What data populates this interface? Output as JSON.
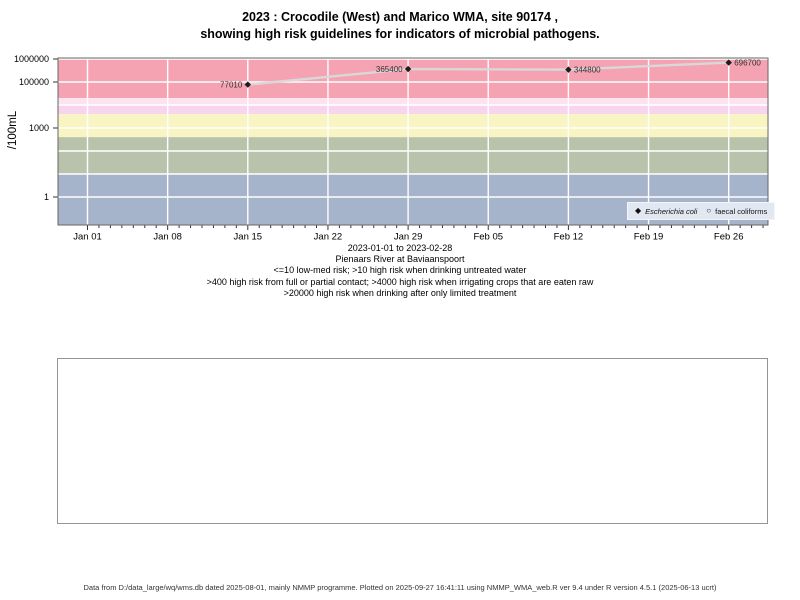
{
  "title": {
    "line1": "2023 : Crocodile (West) and Marico WMA, site 90174 ,",
    "line2": "showing high risk guidelines for indicators of microbial pathogens."
  },
  "chart_data": {
    "type": "scatter",
    "title": "2023 : Crocodile (West) and Marico WMA, site 90174 , showing high risk guidelines for indicators of microbial pathogens.",
    "ylabel": "/100mL",
    "y_axis": {
      "scale": "log10",
      "tick_labels": [
        "1000000",
        "100000",
        "1000",
        "1"
      ],
      "tick_values": [
        1000000,
        100000,
        1000,
        1
      ],
      "ylim_log10": [
        -1.2,
        6.05
      ]
    },
    "x_axis": {
      "tick_labels": [
        "Jan 01",
        "Jan 08",
        "Jan 15",
        "Jan 22",
        "Jan 29",
        "Feb 05",
        "Feb 12",
        "Feb 19",
        "Feb 26"
      ],
      "tick_days": [
        0,
        7,
        14,
        21,
        28,
        35,
        42,
        49,
        56
      ],
      "minor_tick_every_days": 1,
      "xlim_days": [
        -2.5,
        59.5
      ]
    },
    "grid": {
      "horizontal_values": [
        1,
        10,
        100,
        1000,
        10000,
        100000,
        1000000
      ],
      "vertical_days": [
        0,
        7,
        14,
        21,
        28,
        35,
        42,
        49,
        56
      ],
      "color": "#ffffff"
    },
    "risk_bands": [
      {
        "from": 20000,
        "to": null,
        "color": "#f5a3b3"
      },
      {
        "from": 10000,
        "to": 20000,
        "color": "#fbe4f0"
      },
      {
        "from": 4000,
        "to": 10000,
        "color": "#f8d5ee"
      },
      {
        "from": 400,
        "to": 4000,
        "color": "#f9f5c2"
      },
      {
        "from": 10,
        "to": 400,
        "color": "#b9c3ac"
      },
      {
        "from": null,
        "to": 10,
        "color": "#a5b3cb"
      }
    ],
    "series": [
      {
        "name": "Escherichia coli",
        "marker": "filled-diamond",
        "marker_color": "#1c1c1c",
        "line_color": "#d8d8d8",
        "points": [
          {
            "x_day": 14,
            "value": 77010,
            "label": "77010",
            "label_side": "left"
          },
          {
            "x_day": 28,
            "value": 365400,
            "label": "365400",
            "label_side": "left"
          },
          {
            "x_day": 42,
            "value": 344800,
            "label": "344800",
            "label_side": "right"
          },
          {
            "x_day": 56,
            "value": 696700,
            "label": "696700",
            "label_side": "right"
          }
        ]
      },
      {
        "name": "faecal coliforms",
        "marker": "open-circle",
        "marker_color": "#1c1c1c",
        "points": []
      }
    ],
    "legend": {
      "position": "bottom-right",
      "bg": "#e2e8f1",
      "entries": [
        {
          "marker": "filled-diamond",
          "label": "Escherichia coli",
          "italic": true
        },
        {
          "marker": "open-circle",
          "label": "faecal coliforms",
          "italic": false
        }
      ]
    }
  },
  "subtitle": {
    "date_range": "2023-01-01 to 2023-02-28",
    "station": "Pienaars River at Baviaanspoort",
    "guideline_1": "<=10 low-med risk; >10 high risk when drinking untreated water",
    "guideline_2": ">400 high risk from full or partial contact; >4000 high risk when irrigating crops that are eaten raw",
    "guideline_3": ">20000 high risk when drinking after only limited treatment"
  },
  "footer": "Data from D:/data_large/wq/wms.db dated 2025-08-01, mainly NMMP programme. Plotted on 2025-09-27 16:41:11 using NMMP_WMA_web.R ver 9.4 under R version 4.5.1 (2025-06-13 ucrt)"
}
